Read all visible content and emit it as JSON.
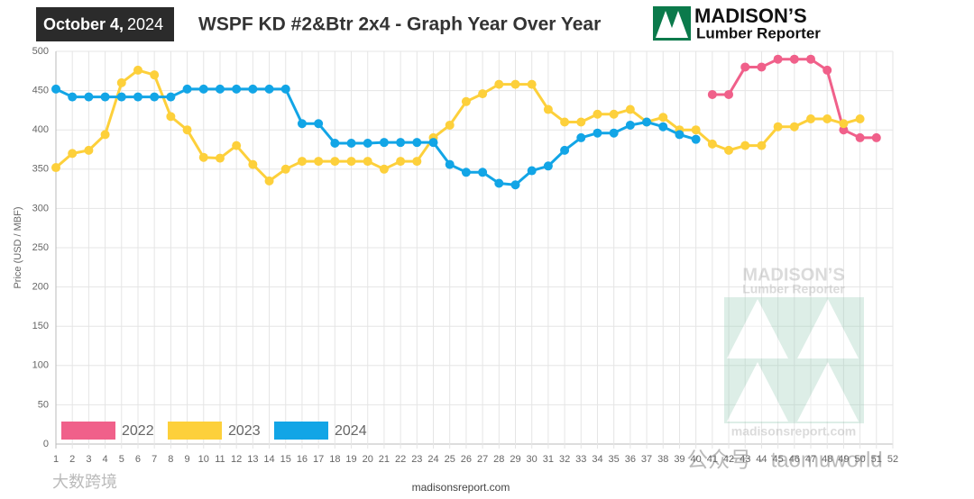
{
  "header": {
    "date_main": "October 4,",
    "date_year": "2024",
    "title": "WSPF KD #2&Btr 2x4 - Graph Year Over Year",
    "logo_top": "MADISON’S",
    "logo_bottom": "Lumber Reporter"
  },
  "watermark": {
    "logo_top": "MADISON’S",
    "logo_bottom": "Lumber Reporter",
    "site": "madisonsreport.com",
    "wechat": "公众号 · taomuworld",
    "corner": "大数跨境"
  },
  "footer": "madisonsreport.com",
  "chart_data": {
    "type": "line",
    "ylabel": "Price (USD / MBF)",
    "categories": [
      1,
      2,
      3,
      4,
      5,
      6,
      7,
      8,
      9,
      10,
      11,
      12,
      13,
      14,
      15,
      16,
      17,
      18,
      19,
      20,
      21,
      22,
      23,
      24,
      25,
      26,
      27,
      28,
      29,
      30,
      31,
      32,
      33,
      34,
      35,
      36,
      37,
      38,
      39,
      40,
      41,
      42,
      43,
      44,
      45,
      46,
      47,
      48,
      49,
      50,
      51,
      52
    ],
    "ylim": [
      0,
      500
    ],
    "yticks": [
      0,
      50,
      100,
      150,
      200,
      250,
      300,
      350,
      400,
      450,
      500
    ],
    "grid": true,
    "legend": "bottom-left",
    "series": [
      {
        "name": "2022",
        "color": "#f0608a",
        "values": [
          null,
          null,
          null,
          null,
          null,
          null,
          null,
          null,
          null,
          null,
          null,
          null,
          null,
          null,
          null,
          null,
          null,
          null,
          null,
          null,
          null,
          null,
          null,
          null,
          null,
          null,
          null,
          null,
          null,
          null,
          null,
          null,
          null,
          null,
          null,
          null,
          null,
          null,
          null,
          null,
          445,
          445,
          480,
          480,
          490,
          490,
          490,
          476,
          400,
          390,
          390,
          null
        ]
      },
      {
        "name": "2023",
        "color": "#fdd03b",
        "values": [
          352,
          370,
          374,
          394,
          460,
          476,
          470,
          417,
          400,
          365,
          364,
          380,
          356,
          335,
          350,
          360,
          360,
          360,
          360,
          360,
          350,
          360,
          360,
          390,
          406,
          436,
          446,
          458,
          458,
          458,
          426,
          410,
          410,
          420,
          420,
          426,
          410,
          416,
          400,
          400,
          382,
          374,
          380,
          380,
          404,
          404,
          414,
          414,
          408,
          414,
          null,
          null
        ]
      },
      {
        "name": "2024",
        "color": "#12a5e6",
        "values": [
          452,
          442,
          442,
          442,
          442,
          442,
          442,
          442,
          452,
          452,
          452,
          452,
          452,
          452,
          452,
          408,
          408,
          383,
          383,
          383,
          384,
          384,
          384,
          384,
          356,
          346,
          346,
          332,
          330,
          348,
          354,
          374,
          390,
          396,
          396,
          406,
          410,
          404,
          394,
          388,
          null,
          null,
          null,
          null,
          null,
          null,
          null,
          null,
          null,
          null,
          null,
          null
        ]
      }
    ]
  }
}
